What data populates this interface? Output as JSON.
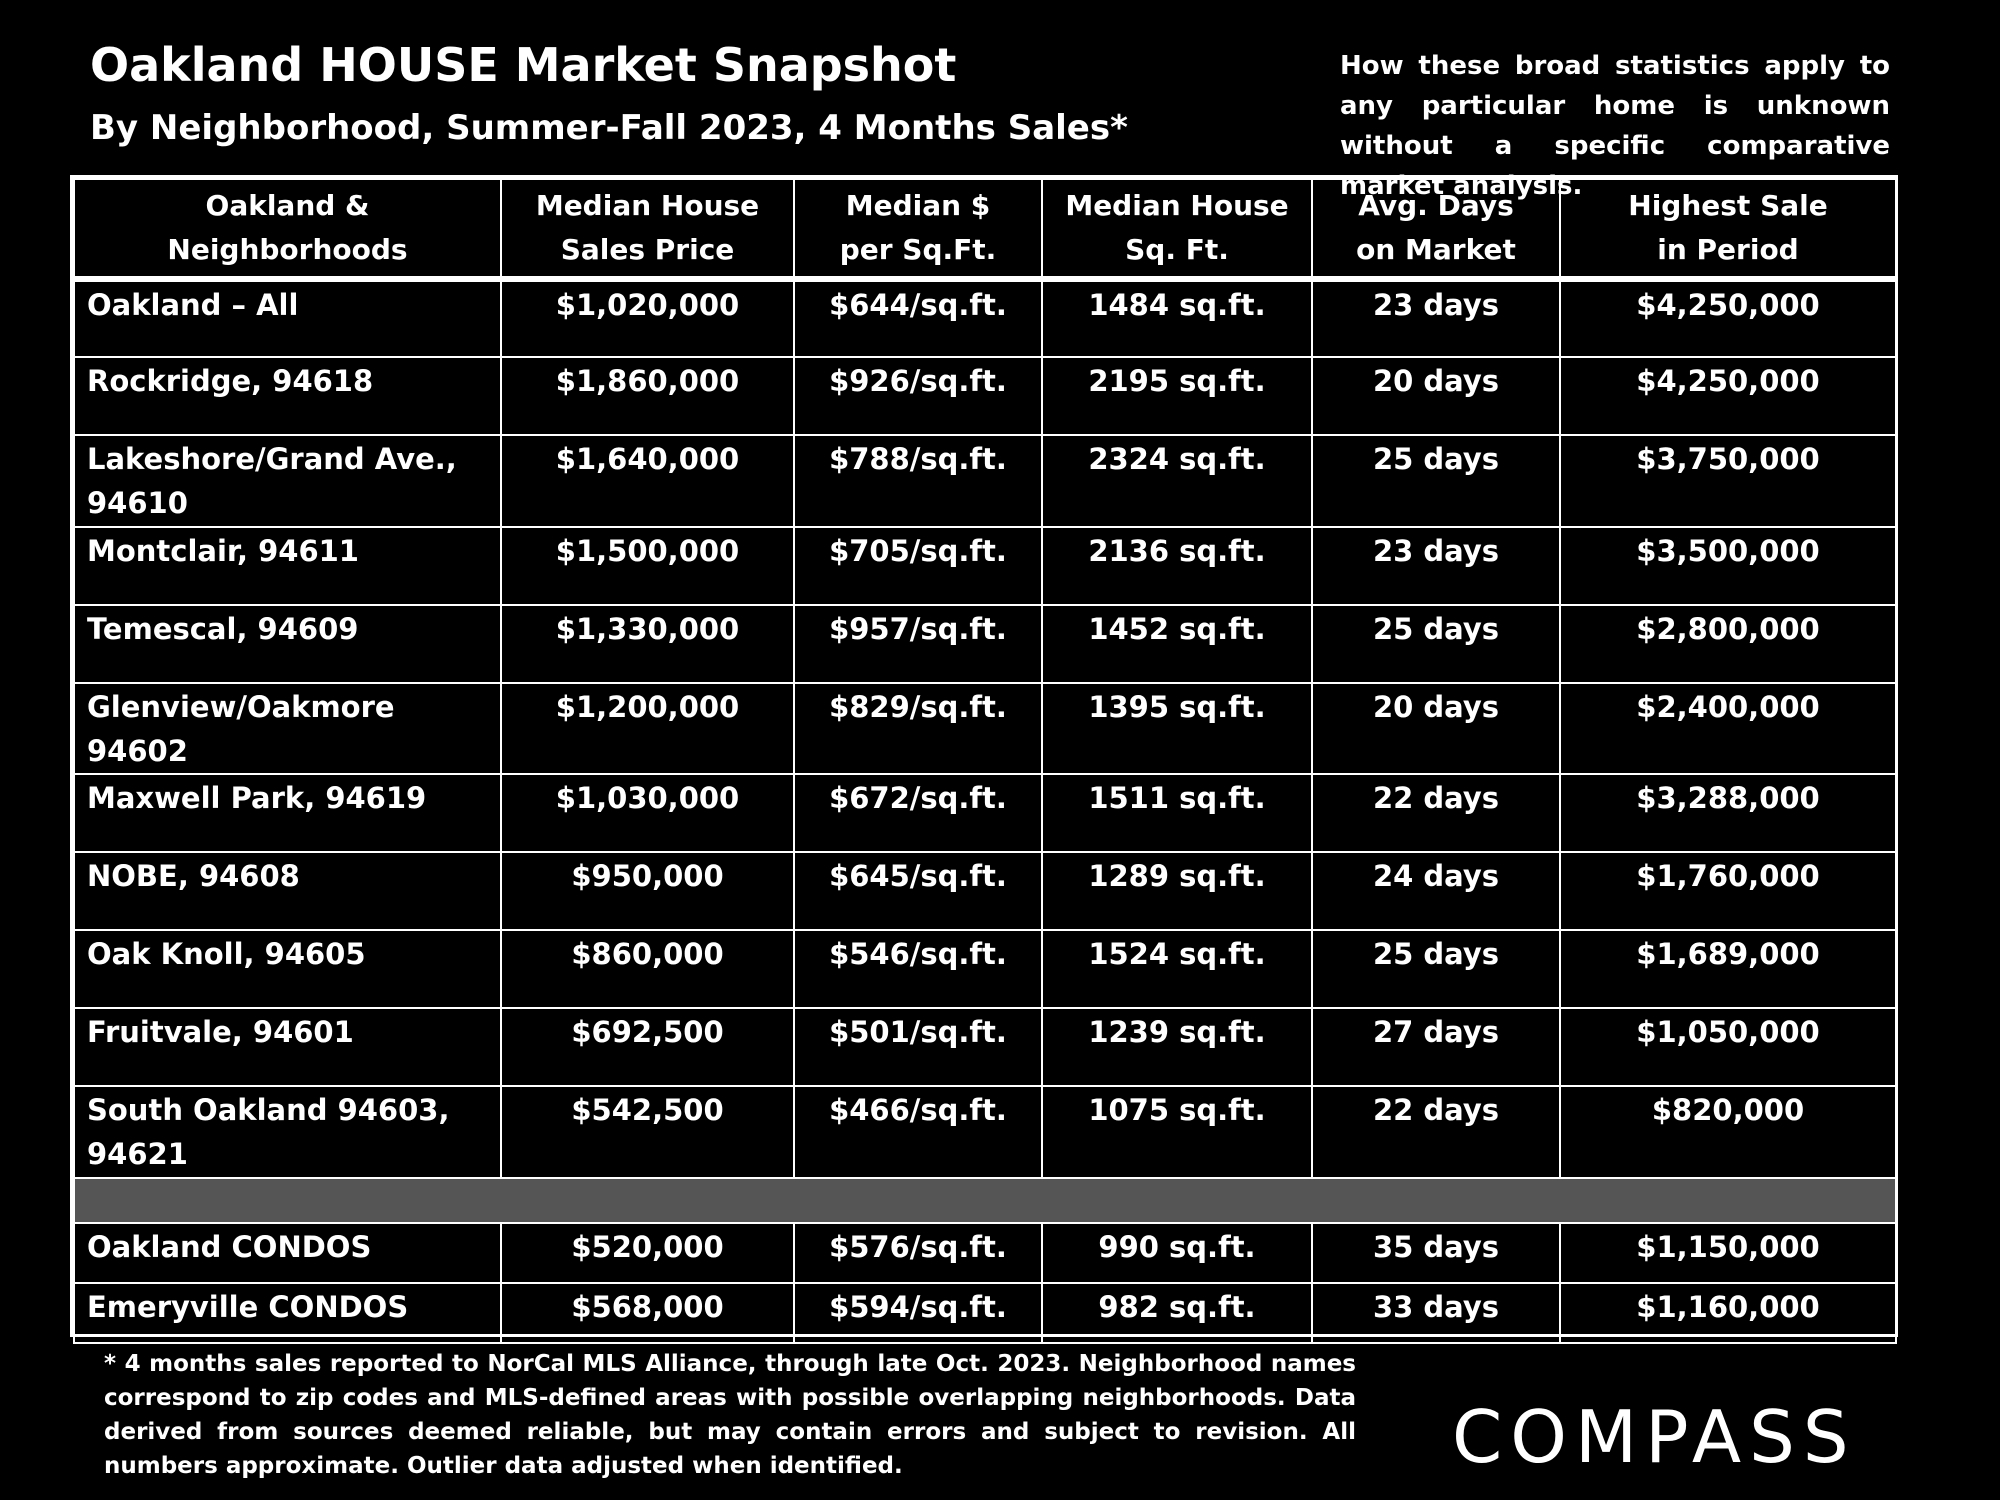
{
  "title": "Oakland HOUSE Market Snapshot",
  "subtitle": "By Neighborhood, Summer-Fall 2023, 4 Months Sales*",
  "disclaimer": "How these broad statistics apply to any particular home is unknown without a specific comparative market analysis.",
  "footnote": "* 4 months sales reported to NorCal MLS Alliance, through late Oct. 2023. Neighborhood names correspond to zip codes and MLS-defined areas with possible overlapping neighborhoods. Data derived from sources deemed reliable, but may contain errors and subject to revision. All numbers approximate. Outlier data adjusted when identified.",
  "logo_text": "COMPASS",
  "chart_data": {
    "type": "table",
    "headers": [
      [
        "Oakland &",
        "Neighborhoods"
      ],
      [
        "Median House",
        "Sales Price"
      ],
      [
        "Median $",
        "per Sq.Ft."
      ],
      [
        "Median House",
        "Sq. Ft."
      ],
      [
        "Avg. Days",
        "on Market"
      ],
      [
        "Highest Sale",
        "in Period"
      ]
    ],
    "rows": [
      [
        "Oakland – All",
        "$1,020,000",
        "$644/sq.ft.",
        "1484 sq.ft.",
        "23 days",
        "$4,250,000"
      ],
      [
        "Rockridge, 94618",
        "$1,860,000",
        "$926/sq.ft.",
        "2195 sq.ft.",
        "20 days",
        "$4,250,000"
      ],
      [
        "Lakeshore/Grand Ave., 94610",
        "$1,640,000",
        "$788/sq.ft.",
        "2324 sq.ft.",
        "25 days",
        "$3,750,000"
      ],
      [
        "Montclair, 94611",
        "$1,500,000",
        "$705/sq.ft.",
        "2136 sq.ft.",
        "23 days",
        "$3,500,000"
      ],
      [
        "Temescal, 94609",
        "$1,330,000",
        "$957/sq.ft.",
        "1452 sq.ft.",
        "25 days",
        "$2,800,000"
      ],
      [
        "Glenview/Oakmore 94602",
        "$1,200,000",
        "$829/sq.ft.",
        "1395 sq.ft.",
        "20 days",
        "$2,400,000"
      ],
      [
        "Maxwell Park, 94619",
        "$1,030,000",
        "$672/sq.ft.",
        "1511 sq.ft.",
        "22 days",
        "$3,288,000"
      ],
      [
        "NOBE, 94608",
        "$950,000",
        "$645/sq.ft.",
        "1289 sq.ft.",
        "24 days",
        "$1,760,000"
      ],
      [
        "Oak Knoll, 94605",
        "$860,000",
        "$546/sq.ft.",
        "1524 sq.ft.",
        "25 days",
        "$1,689,000"
      ],
      [
        "Fruitvale, 94601",
        "$692,500",
        "$501/sq.ft.",
        "1239 sq.ft.",
        "27 days",
        "$1,050,000"
      ],
      [
        "South Oakland 94603, 94621",
        "$542,500",
        "$466/sq.ft.",
        "1075 sq.ft.",
        "22 days",
        "$820,000"
      ]
    ],
    "condo_rows": [
      [
        "Oakland CONDOS",
        "$520,000",
        "$576/sq.ft.",
        "990 sq.ft.",
        "35 days",
        "$1,150,000"
      ],
      [
        "Emeryville CONDOS",
        "$568,000",
        "$594/sq.ft.",
        "982 sq.ft.",
        "33 days",
        "$1,160,000"
      ]
    ]
  }
}
